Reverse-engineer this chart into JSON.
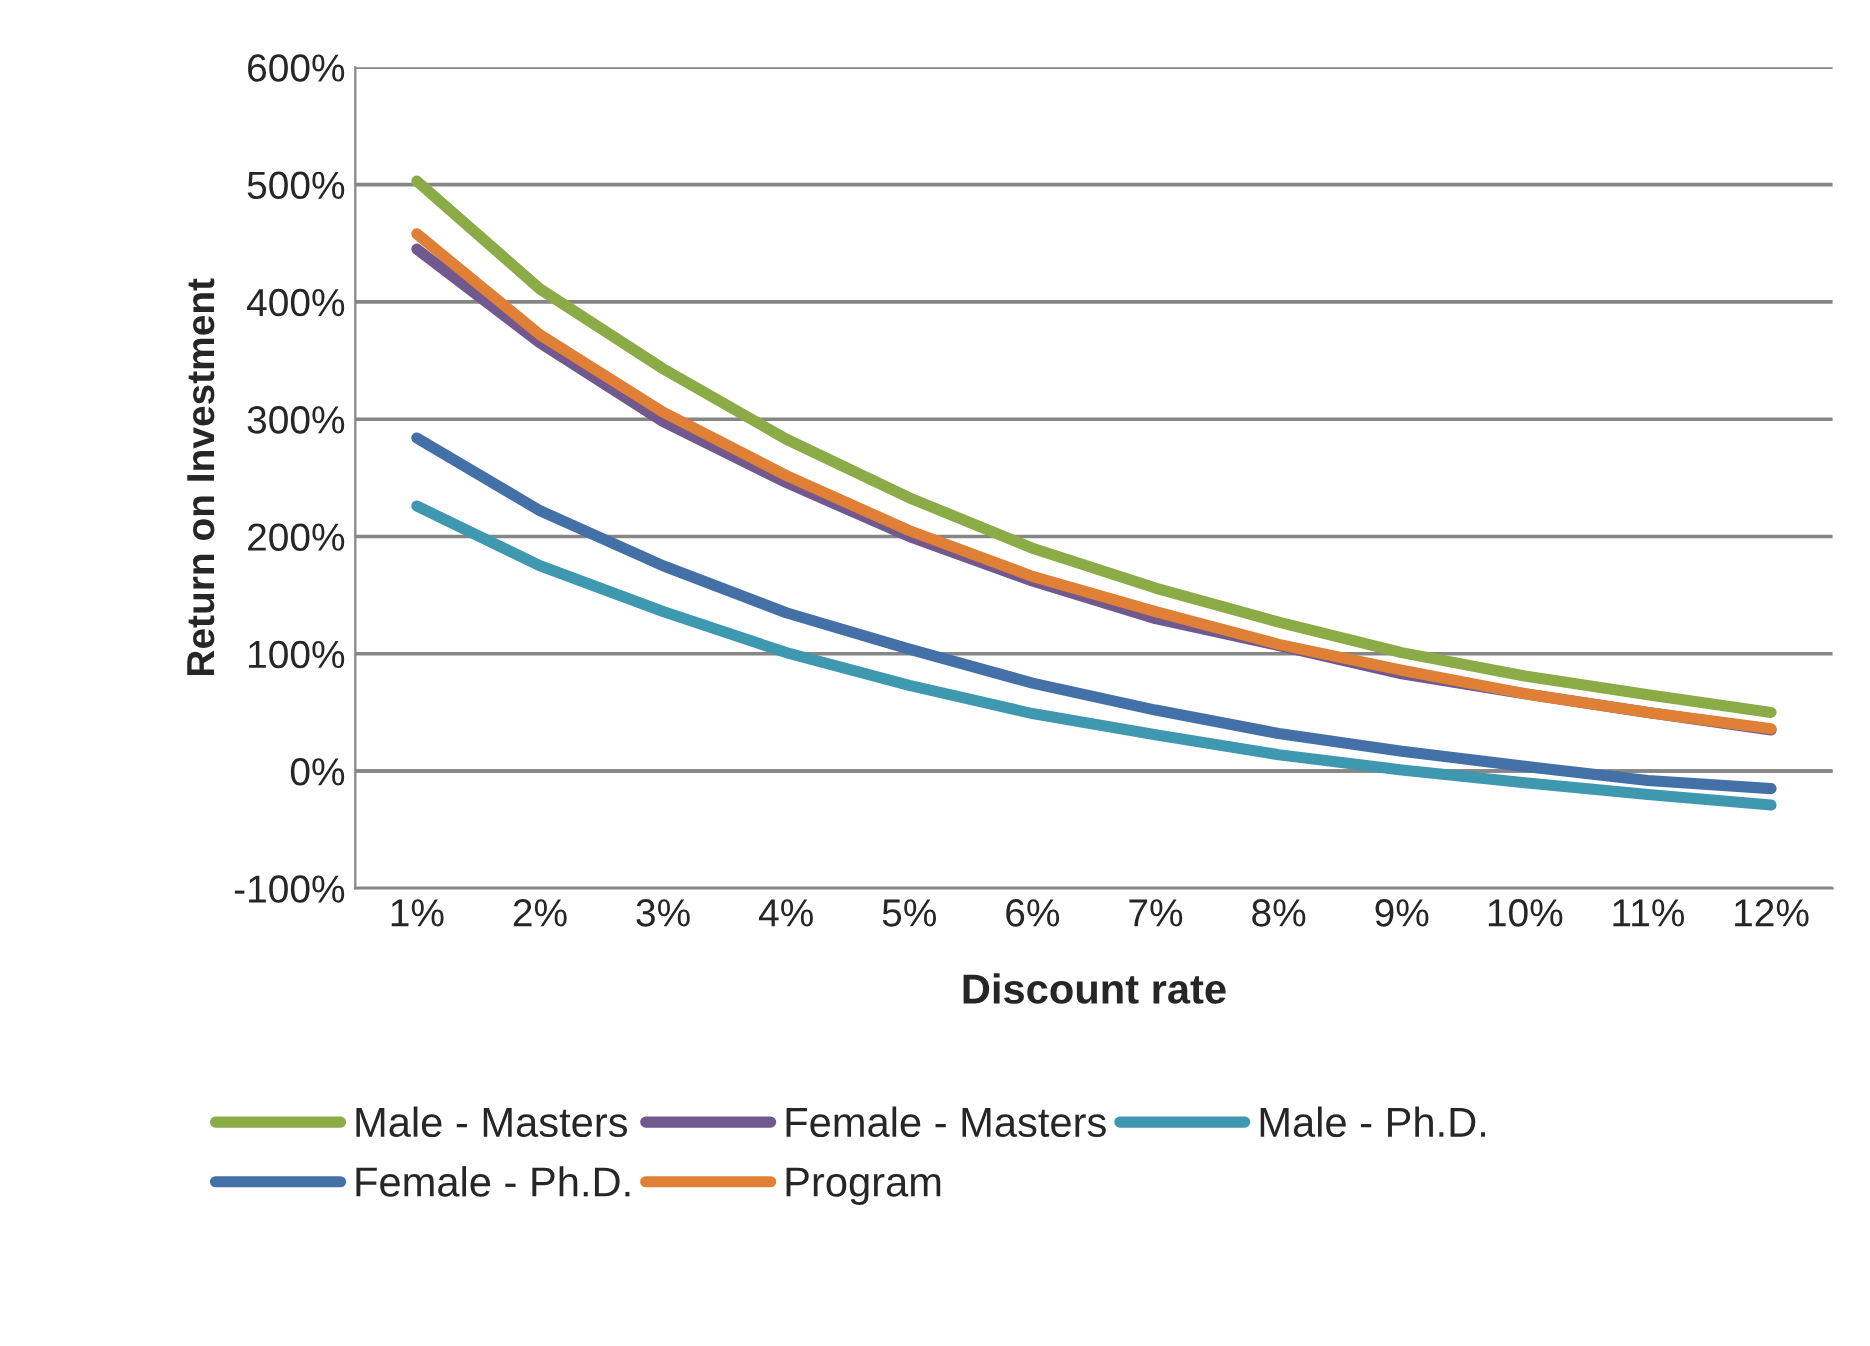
{
  "chart_data": {
    "type": "line",
    "xlabel": "Discount rate",
    "ylabel": "Return on Investment",
    "categories": [
      "1%",
      "2%",
      "3%",
      "4%",
      "5%",
      "6%",
      "7%",
      "8%",
      "9%",
      "10%",
      "11%",
      "12%"
    ],
    "series": [
      {
        "name": "Male - Masters",
        "color": "#8aab46",
        "values": [
          503,
          411,
          343,
          283,
          233,
          190,
          156,
          127,
          101,
          81,
          65,
          50
        ]
      },
      {
        "name": "Female - Masters",
        "color": "#71588f",
        "values": [
          445,
          365,
          298,
          246,
          200,
          162,
          130,
          107,
          83,
          66,
          50,
          35
        ]
      },
      {
        "name": "Male - Ph.D.",
        "color": "#3e98b0",
        "values": [
          226,
          175,
          136,
          101,
          73,
          49,
          31,
          14,
          1,
          -10,
          -20,
          -29
        ]
      },
      {
        "name": "Female - Ph.D.",
        "color": "#4470a8",
        "values": [
          284,
          222,
          175,
          135,
          104,
          75,
          52,
          32,
          17,
          4,
          -8,
          -15
        ]
      },
      {
        "name": "Program",
        "color": "#e07f36",
        "values": [
          458,
          372,
          306,
          252,
          205,
          166,
          136,
          108,
          86,
          66,
          50,
          36
        ]
      }
    ],
    "ylim": [
      -100,
      600
    ],
    "yticks": [
      {
        "value": -100,
        "label": "-100%"
      },
      {
        "value": 0,
        "label": "0%"
      },
      {
        "value": 100,
        "label": "100%"
      },
      {
        "value": 200,
        "label": "200%"
      },
      {
        "value": 300,
        "label": "300%"
      },
      {
        "value": 400,
        "label": "400%"
      },
      {
        "value": 500,
        "label": "500%"
      },
      {
        "value": 600,
        "label": "600%"
      }
    ],
    "grid": "y",
    "legend": "bottom",
    "marker": "none",
    "line_style": "solid"
  }
}
